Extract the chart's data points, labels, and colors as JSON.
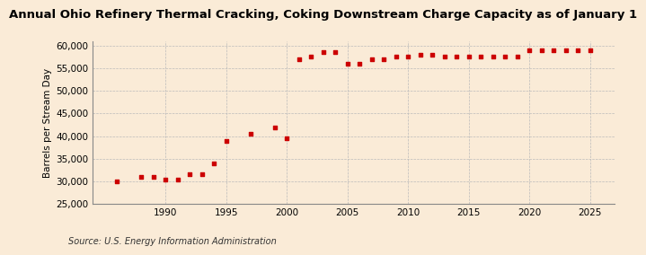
{
  "title": "Annual Ohio Refinery Thermal Cracking, Coking Downstream Charge Capacity as of January 1",
  "ylabel": "Barrels per Stream Day",
  "source": "Source: U.S. Energy Information Administration",
  "background_color": "#faebd7",
  "marker_color": "#cc0000",
  "years": [
    1986,
    1988,
    1989,
    1990,
    1991,
    1992,
    1993,
    1994,
    1995,
    1997,
    1999,
    2000,
    2001,
    2002,
    2003,
    2004,
    2005,
    2006,
    2007,
    2008,
    2009,
    2010,
    2011,
    2012,
    2013,
    2014,
    2015,
    2016,
    2017,
    2018,
    2019,
    2020,
    2021,
    2022,
    2023,
    2024,
    2025
  ],
  "values": [
    30000,
    31000,
    31000,
    30500,
    30500,
    31500,
    31500,
    34000,
    39000,
    40500,
    42000,
    39500,
    57000,
    57500,
    58500,
    58500,
    56000,
    56000,
    57000,
    57000,
    57500,
    57500,
    58000,
    58000,
    57500,
    57500,
    57500,
    57500,
    57500,
    57500,
    57500,
    59000,
    59000,
    59000,
    59000,
    59000,
    59000
  ],
  "ylim": [
    25000,
    61000
  ],
  "yticks": [
    25000,
    30000,
    35000,
    40000,
    45000,
    50000,
    55000,
    60000
  ],
  "xlim": [
    1984,
    2027
  ],
  "xticks": [
    1990,
    1995,
    2000,
    2005,
    2010,
    2015,
    2020,
    2025
  ],
  "title_fontsize": 9.5,
  "label_fontsize": 7.5,
  "tick_fontsize": 7.5,
  "source_fontsize": 7
}
